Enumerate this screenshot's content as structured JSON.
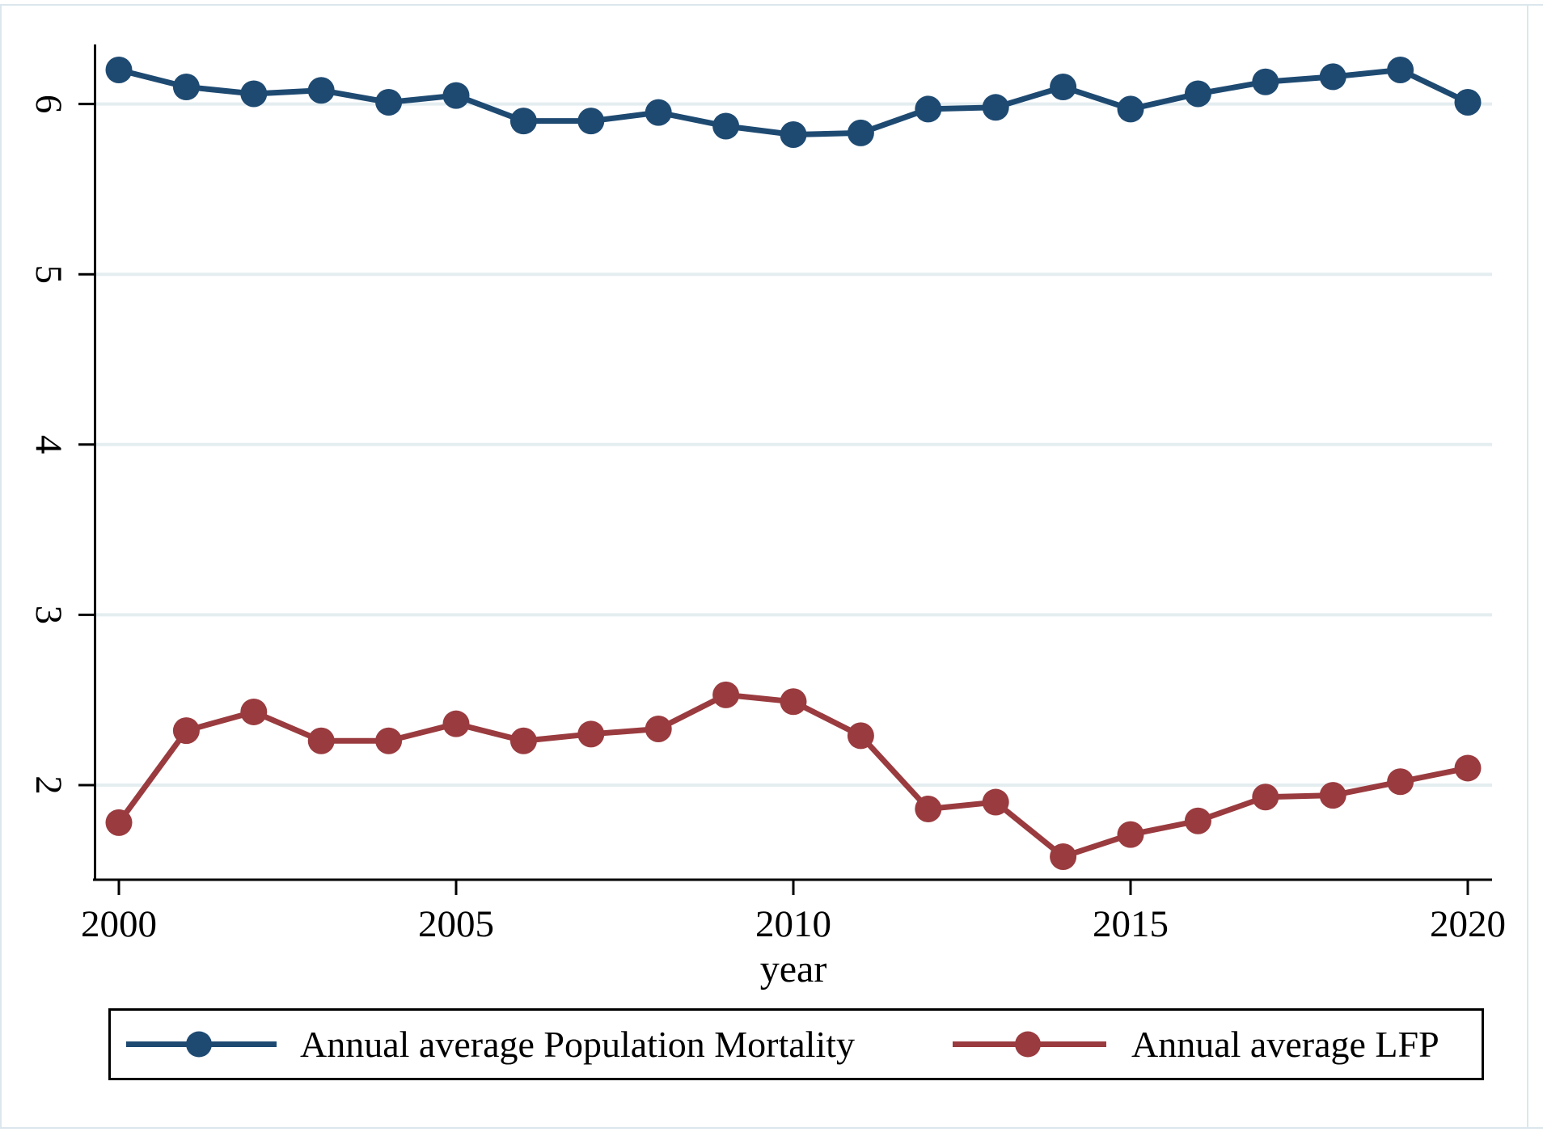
{
  "chart_data": {
    "type": "line",
    "title": "",
    "xlabel": "year",
    "ylabel": "",
    "x_ticks": [
      2000,
      2005,
      2010,
      2015,
      2020
    ],
    "y_ticks": [
      2,
      3,
      4,
      5,
      6
    ],
    "xlim": [
      1999.6,
      2020.4
    ],
    "ylim": [
      1.44,
      6.35
    ],
    "grid": "horizontal light gridlines at integer y values",
    "legend_position": "bottom boxed",
    "x": [
      2000,
      2001,
      2002,
      2003,
      2004,
      2005,
      2006,
      2007,
      2008,
      2009,
      2010,
      2011,
      2012,
      2013,
      2014,
      2015,
      2016,
      2017,
      2018,
      2019,
      2020
    ],
    "series": [
      {
        "name": "Annual average Population Mortality",
        "color": "#1e4a72",
        "marker": "filled-circle",
        "values": [
          6.2,
          6.1,
          6.06,
          6.08,
          6.01,
          6.05,
          5.9,
          5.9,
          5.95,
          5.87,
          5.82,
          5.83,
          5.97,
          5.98,
          6.1,
          5.97,
          6.06,
          6.13,
          6.16,
          6.2,
          6.01
        ]
      },
      {
        "name": "Annual average LFP",
        "color": "#9a3b3f",
        "marker": "filled-circle",
        "values": [
          1.78,
          2.32,
          2.43,
          2.26,
          2.26,
          2.36,
          2.26,
          2.3,
          2.33,
          2.53,
          2.49,
          2.29,
          1.86,
          1.9,
          1.58,
          1.71,
          1.79,
          1.93,
          1.94,
          2.02,
          2.1
        ]
      }
    ],
    "colors": {
      "axis": "#000000",
      "gridline": "#e4edf0",
      "frame": "#dbe7ec",
      "background": "#ffffff"
    }
  }
}
